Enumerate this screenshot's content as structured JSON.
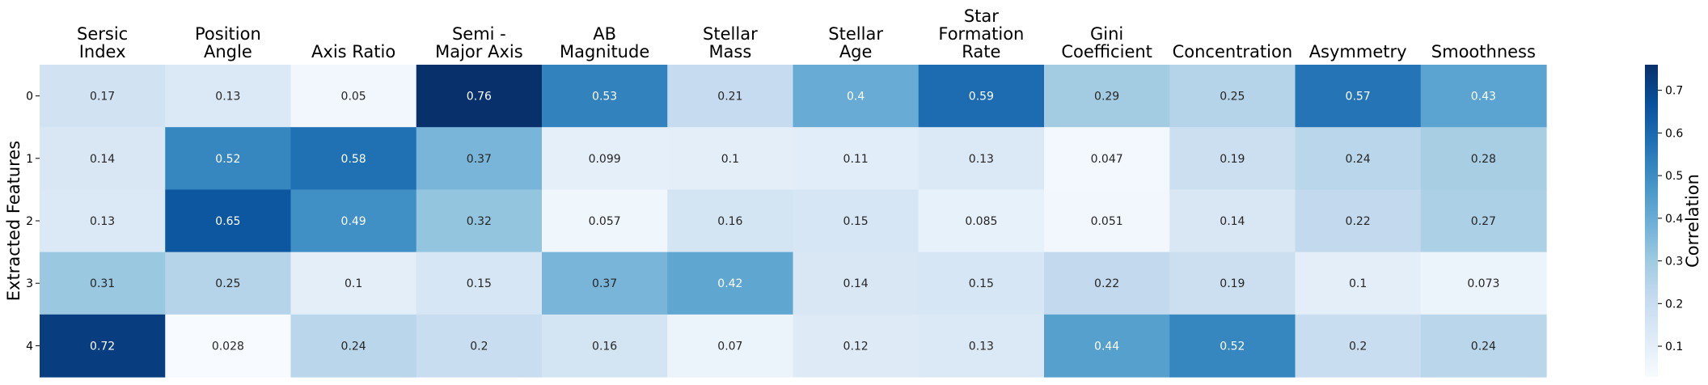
{
  "chart_data": {
    "type": "heatmap",
    "columns": [
      [
        "Sersic",
        "Index"
      ],
      [
        "Position",
        "Angle"
      ],
      [
        "Axis Ratio"
      ],
      [
        "Semi -",
        "Major Axis"
      ],
      [
        "AB",
        "Magnitude"
      ],
      [
        "Stellar",
        "Mass"
      ],
      [
        "Stellar",
        "Age"
      ],
      [
        "Star",
        "Formation",
        "Rate"
      ],
      [
        "Gini",
        "Coefficient"
      ],
      [
        "Concentration"
      ],
      [
        "Asymmetry"
      ],
      [
        "Smoothness"
      ]
    ],
    "rows": [
      "0",
      "1",
      "2",
      "3",
      "4"
    ],
    "values": [
      [
        0.17,
        0.13,
        0.05,
        0.76,
        0.53,
        0.21,
        0.4,
        0.59,
        0.29,
        0.25,
        0.57,
        0.43
      ],
      [
        0.14,
        0.52,
        0.58,
        0.37,
        0.099,
        0.1,
        0.11,
        0.13,
        0.047,
        0.19,
        0.24,
        0.28
      ],
      [
        0.13,
        0.65,
        0.49,
        0.32,
        0.057,
        0.16,
        0.15,
        0.085,
        0.051,
        0.14,
        0.22,
        0.27
      ],
      [
        0.31,
        0.25,
        0.1,
        0.15,
        0.37,
        0.42,
        0.14,
        0.15,
        0.22,
        0.19,
        0.1,
        0.073
      ],
      [
        0.72,
        0.028,
        0.24,
        0.2,
        0.16,
        0.07,
        0.12,
        0.13,
        0.44,
        0.52,
        0.2,
        0.24
      ]
    ],
    "value_labels": [
      [
        "0.17",
        "0.13",
        "0.05",
        "0.76",
        "0.53",
        "0.21",
        "0.4",
        "0.59",
        "0.29",
        "0.25",
        "0.57",
        "0.43"
      ],
      [
        "0.14",
        "0.52",
        "0.58",
        "0.37",
        "0.099",
        "0.1",
        "0.11",
        "0.13",
        "0.047",
        "0.19",
        "0.24",
        "0.28"
      ],
      [
        "0.13",
        "0.65",
        "0.49",
        "0.32",
        "0.057",
        "0.16",
        "0.15",
        "0.085",
        "0.051",
        "0.14",
        "0.22",
        "0.27"
      ],
      [
        "0.31",
        "0.25",
        "0.1",
        "0.15",
        "0.37",
        "0.42",
        "0.14",
        "0.15",
        "0.22",
        "0.19",
        "0.1",
        "0.073"
      ],
      [
        "0.72",
        "0.028",
        "0.24",
        "0.2",
        "0.16",
        "0.07",
        "0.12",
        "0.13",
        "0.44",
        "0.52",
        "0.2",
        "0.24"
      ]
    ],
    "ylabel": "Extracted Features",
    "colorbar": {
      "label": "Correlation",
      "range": [
        0.028,
        0.76
      ],
      "ticks": [
        "0.1",
        "0.2",
        "0.3",
        "0.4",
        "0.5",
        "0.6",
        "0.7"
      ],
      "colormap": "Blues"
    },
    "column_labels_position": "top",
    "annotated": true
  }
}
